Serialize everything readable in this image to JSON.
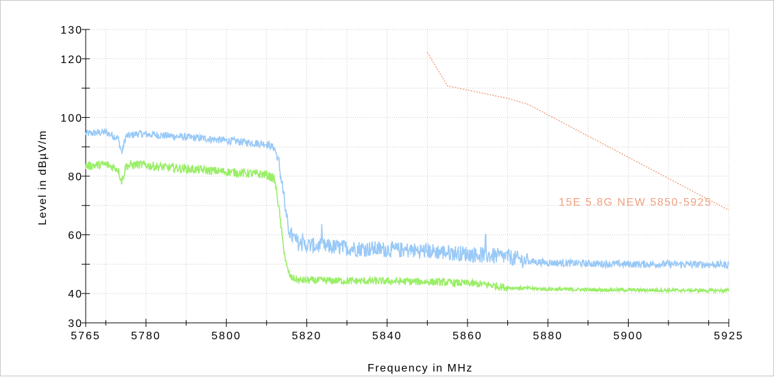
{
  "chart_data": {
    "type": "line",
    "xlabel": "Frequency in MHz",
    "ylabel": "Level in dBµV/m",
    "xlim": [
      5765,
      5925
    ],
    "ylim": [
      30,
      130
    ],
    "x_ticks": [
      "5765",
      "5780",
      "5800",
      "5820",
      "5840",
      "5860",
      "5880",
      "5900",
      "5925"
    ],
    "y_ticks": [
      "30",
      "40",
      "60",
      "80",
      "100",
      "120",
      "130"
    ],
    "grid": "dotted",
    "series": [
      {
        "color": "#99c9f7",
        "x": [
          5765,
          5770,
          5773,
          5774,
          5775,
          5778,
          5785,
          5795,
          5805,
          5810,
          5812,
          5813,
          5814,
          5815,
          5816,
          5818,
          5820,
          5830,
          5840,
          5850,
          5860,
          5870,
          5875,
          5880,
          5890,
          5900,
          5910,
          5925
        ],
        "y": [
          94.5,
          95,
          93,
          88,
          93.5,
          94.5,
          93.8,
          92.8,
          91.5,
          91,
          89.5,
          85,
          76,
          65,
          60,
          57,
          56.5,
          55.5,
          55,
          54.5,
          53.5,
          52.5,
          51,
          50.5,
          50.2,
          50,
          50,
          49.8
        ]
      },
      {
        "color": "#99ee66",
        "x": [
          5765,
          5770,
          5773,
          5774,
          5775,
          5778,
          5785,
          5795,
          5805,
          5810,
          5812,
          5813,
          5814,
          5815,
          5816,
          5818,
          5820,
          5830,
          5840,
          5850,
          5860,
          5865,
          5870,
          5880,
          5890,
          5900,
          5910,
          5925
        ],
        "y": [
          83.5,
          84,
          82.5,
          78,
          83.5,
          84,
          83,
          82,
          81,
          80.5,
          79,
          70,
          58,
          49,
          45.5,
          44.5,
          44.5,
          44.3,
          44.2,
          44,
          43.5,
          43,
          42,
          41.5,
          41.3,
          41.2,
          41.1,
          41
        ]
      }
    ],
    "limit_line": {
      "label": "15E 5.8G NEW 5850-5925",
      "color": "#f0a080",
      "x": [
        5850,
        5855,
        5870,
        5875,
        5925
      ],
      "y": [
        122.2,
        110.8,
        106.5,
        104.5,
        68.4
      ]
    }
  }
}
